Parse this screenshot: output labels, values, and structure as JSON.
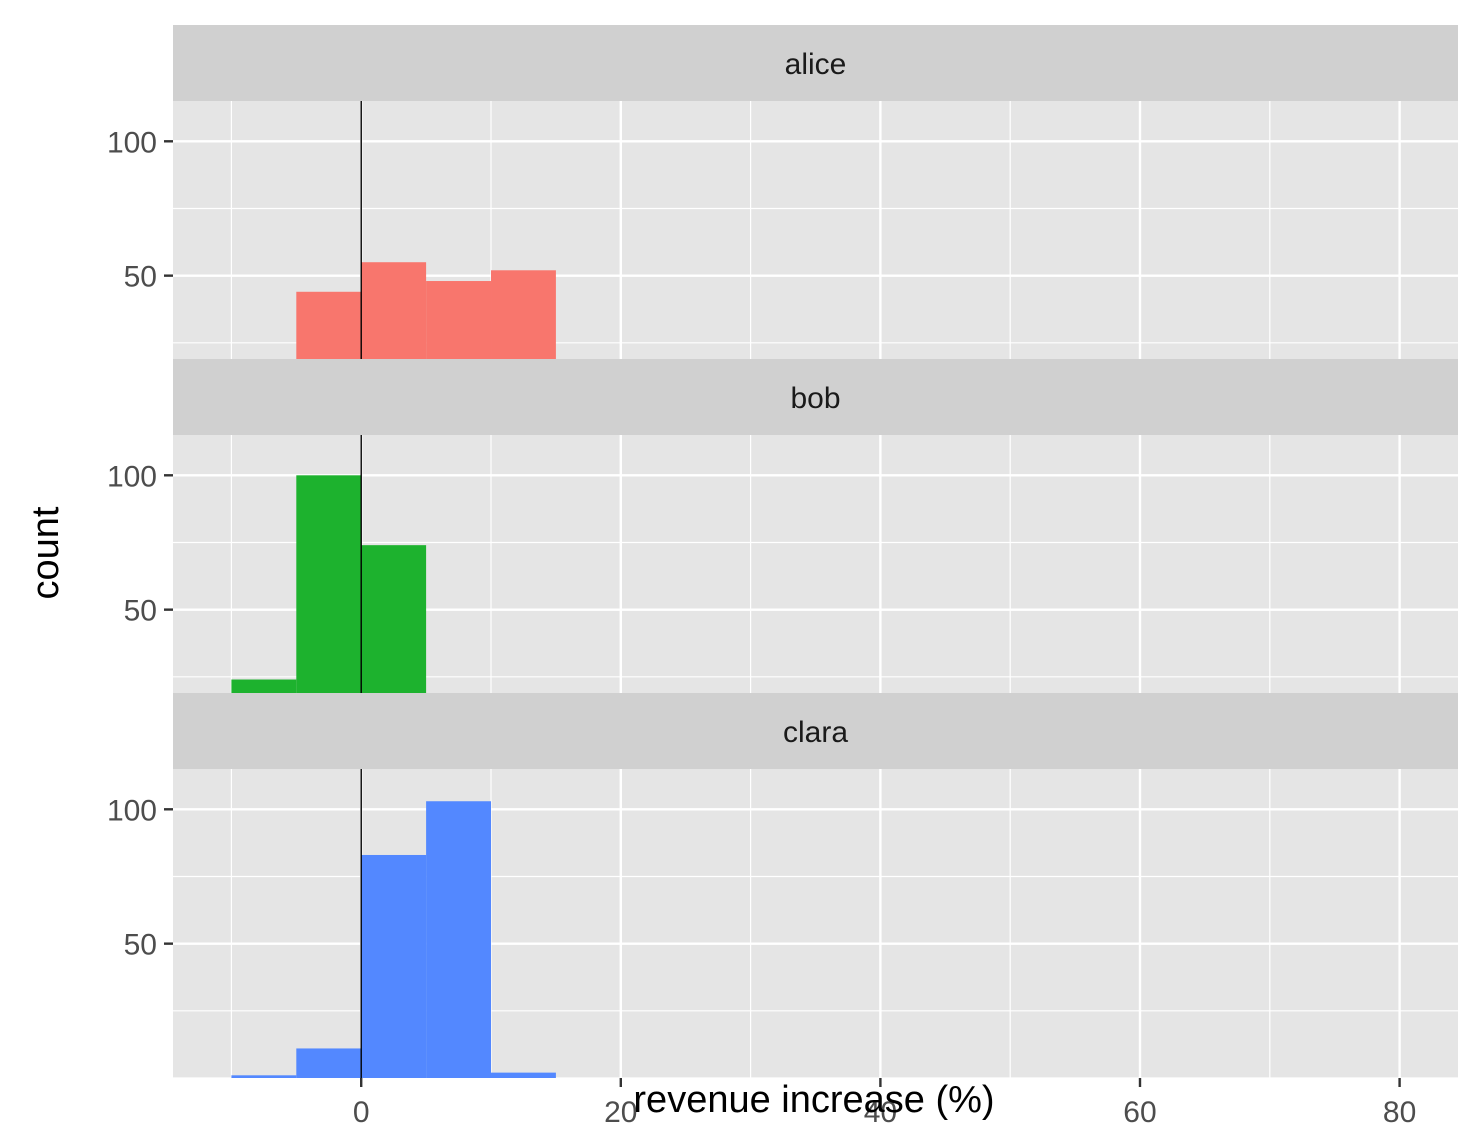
{
  "chart_data": {
    "type": "bar",
    "subtype": "faceted-histogram",
    "xlabel": "revenue increase (%)",
    "ylabel": "count",
    "xlim": [
      -14.5,
      84.5
    ],
    "ylim": [
      0,
      115
    ],
    "x_ticks": [
      0,
      20,
      40,
      60,
      80
    ],
    "y_ticks": [
      50,
      100
    ],
    "bin_width": 5,
    "reference_line_x": 0,
    "grid": true,
    "legend": "none",
    "facets": [
      {
        "name": "alice",
        "color": "#F8766D",
        "bins": [
          {
            "x0": -5,
            "x1": 0,
            "count": 44
          },
          {
            "x0": 0,
            "x1": 5,
            "count": 55
          },
          {
            "x0": 5,
            "x1": 10,
            "count": 48
          },
          {
            "x0": 10,
            "x1": 15,
            "count": 52
          },
          {
            "x0": 15,
            "x1": 20,
            "count": 1
          }
        ]
      },
      {
        "name": "bob",
        "color": "#1DB22E",
        "bins": [
          {
            "x0": -10,
            "x1": -5,
            "count": 24
          },
          {
            "x0": -5,
            "x1": 0,
            "count": 100
          },
          {
            "x0": 0,
            "x1": 5,
            "count": 74
          },
          {
            "x0": 5,
            "x1": 10,
            "count": 2
          },
          {
            "x0": 60,
            "x1": 65,
            "count": 2
          },
          {
            "x0": 65,
            "x1": 70,
            "count": 2
          },
          {
            "x0": 70,
            "x1": 75,
            "count": 2
          },
          {
            "x0": 75,
            "x1": 80,
            "count": 4
          }
        ]
      },
      {
        "name": "clara",
        "color": "#5388FF",
        "bins": [
          {
            "x0": -10,
            "x1": -5,
            "count": 1
          },
          {
            "x0": -5,
            "x1": 0,
            "count": 11
          },
          {
            "x0": 0,
            "x1": 5,
            "count": 83
          },
          {
            "x0": 5,
            "x1": 10,
            "count": 103
          },
          {
            "x0": 10,
            "x1": 15,
            "count": 2
          }
        ]
      }
    ]
  }
}
